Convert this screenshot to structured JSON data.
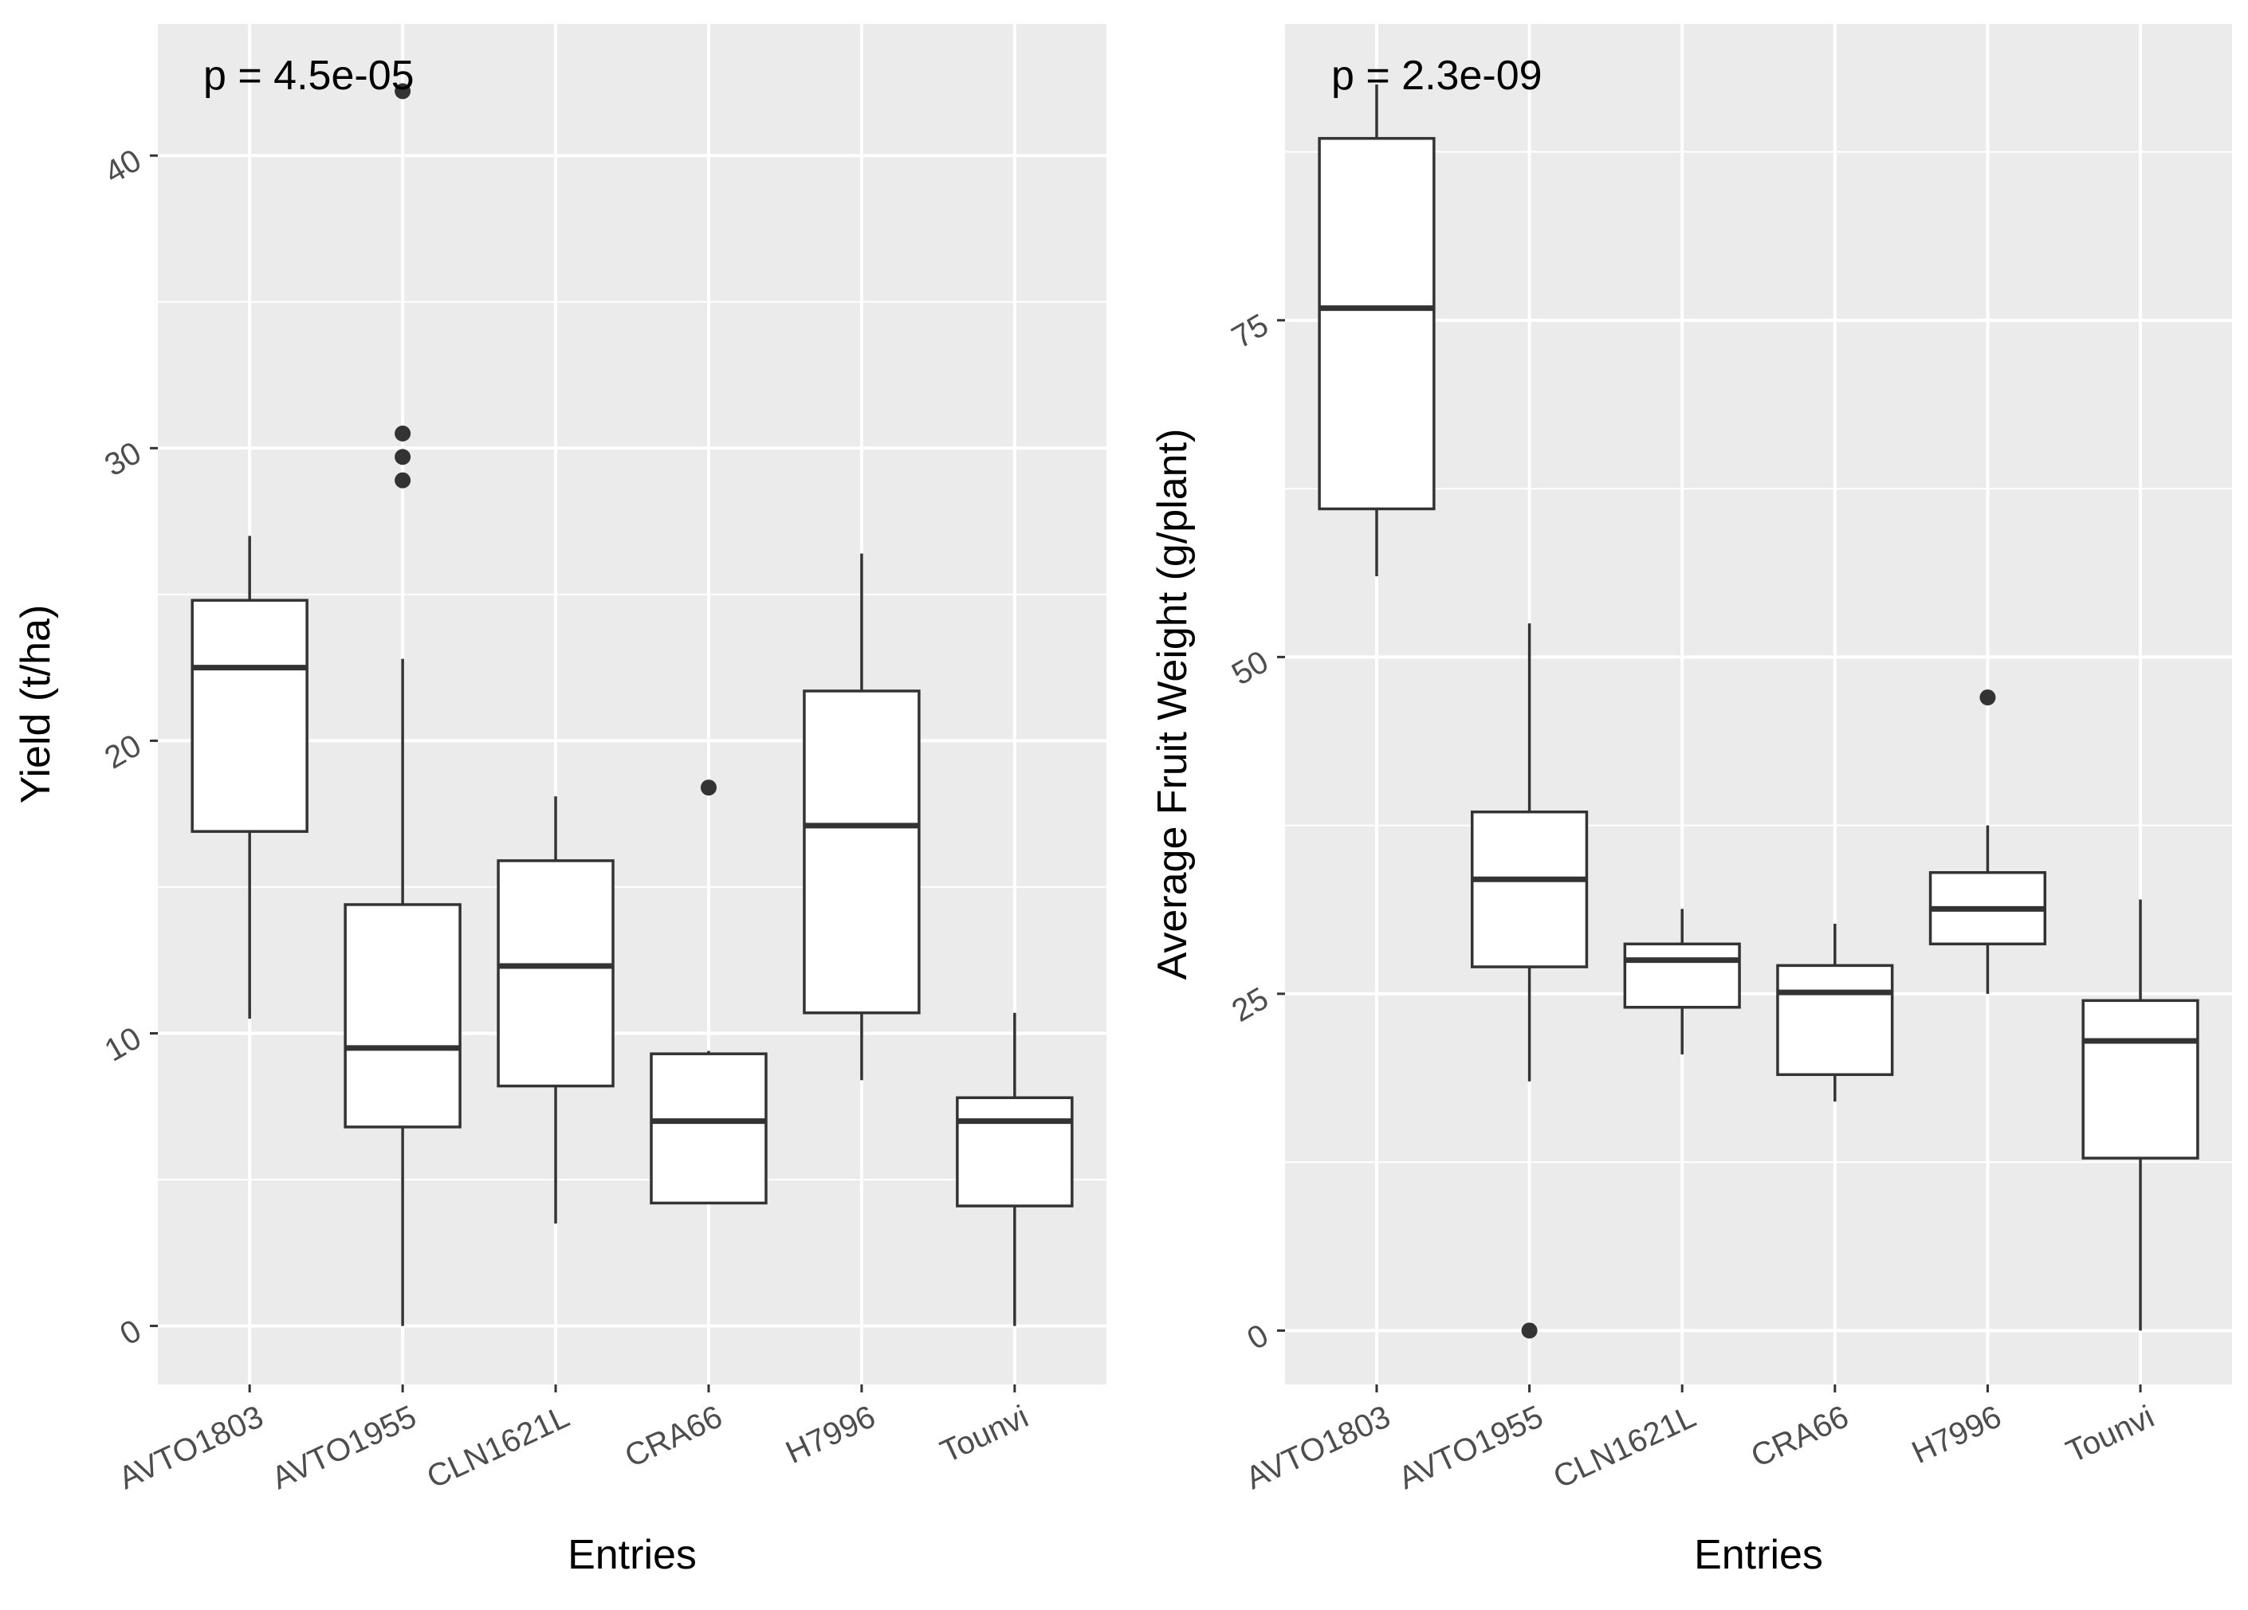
{
  "colors": {
    "panel_background": "#ebebeb",
    "grid": "#ffffff",
    "box_fill": "#ffffff",
    "box_line": "#333333",
    "tick_text": "#4d4d4d",
    "title_text": "#000000"
  },
  "chart_data": [
    {
      "type": "boxplot",
      "title": "",
      "annotation": "p = 4.5e-05",
      "xlabel": "Entries",
      "ylabel": "Yield (t/ha)",
      "ylim": [
        -2,
        44.5
      ],
      "yticks": [
        0,
        10,
        20,
        30,
        40
      ],
      "ytick_labels": [
        "0",
        "10",
        "20",
        "30",
        "40"
      ],
      "categories": [
        "AVTO1803",
        "AVTO1955",
        "CLN1621L",
        "CRA66",
        "H7996",
        "Tounvi"
      ],
      "boxes": [
        {
          "category": "AVTO1803",
          "whisker_low": 10.5,
          "q1": 16.9,
          "median": 22.5,
          "q3": 24.8,
          "whisker_high": 27.0,
          "outliers": []
        },
        {
          "category": "AVTO1955",
          "whisker_low": 0.0,
          "q1": 6.8,
          "median": 9.5,
          "q3": 14.4,
          "whisker_high": 22.8,
          "outliers": [
            28.9,
            29.7,
            30.5,
            42.2
          ]
        },
        {
          "category": "CLN1621L",
          "whisker_low": 3.5,
          "q1": 8.2,
          "median": 12.3,
          "q3": 15.9,
          "whisker_high": 18.1,
          "outliers": []
        },
        {
          "category": "CRA66",
          "whisker_low": 4.2,
          "q1": 4.2,
          "median": 7.0,
          "q3": 9.3,
          "whisker_high": 9.4,
          "outliers": [
            18.4
          ]
        },
        {
          "category": "H7996",
          "whisker_low": 8.4,
          "q1": 10.7,
          "median": 17.1,
          "q3": 21.7,
          "whisker_high": 26.4,
          "outliers": []
        },
        {
          "category": "Tounvi",
          "whisker_low": 0.0,
          "q1": 4.1,
          "median": 7.0,
          "q3": 7.8,
          "whisker_high": 10.7,
          "outliers": []
        }
      ]
    },
    {
      "type": "boxplot",
      "title": "",
      "annotation": "p = 2.3e-09",
      "xlabel": "Entries",
      "ylabel": "Average Fruit Weight (g/plant)",
      "ylim": [
        -4,
        97
      ],
      "yticks": [
        0,
        25,
        50,
        75
      ],
      "ytick_labels": [
        "0",
        "25",
        "50",
        "75"
      ],
      "categories": [
        "AVTO1803",
        "AVTO1955",
        "CLN1621L",
        "CRA66",
        "H7996",
        "Tounvi"
      ],
      "boxes": [
        {
          "category": "AVTO1803",
          "whisker_low": 56.0,
          "q1": 61.0,
          "median": 75.9,
          "q3": 88.5,
          "whisker_high": 92.5,
          "outliers": []
        },
        {
          "category": "AVTO1955",
          "whisker_low": 18.5,
          "q1": 27.0,
          "median": 33.5,
          "q3": 38.5,
          "whisker_high": 52.5,
          "outliers": [
            0.0
          ]
        },
        {
          "category": "CLN1621L",
          "whisker_low": 20.5,
          "q1": 24.0,
          "median": 27.5,
          "q3": 28.7,
          "whisker_high": 31.3,
          "outliers": []
        },
        {
          "category": "CRA66",
          "whisker_low": 17.0,
          "q1": 19.0,
          "median": 25.1,
          "q3": 27.1,
          "whisker_high": 30.2,
          "outliers": []
        },
        {
          "category": "H7996",
          "whisker_low": 25.0,
          "q1": 28.7,
          "median": 31.3,
          "q3": 34.0,
          "whisker_high": 37.5,
          "outliers": [
            47.0
          ]
        },
        {
          "category": "Tounvi",
          "whisker_low": 0.0,
          "q1": 12.8,
          "median": 21.5,
          "q3": 24.5,
          "whisker_high": 32.0,
          "outliers": []
        }
      ]
    }
  ]
}
